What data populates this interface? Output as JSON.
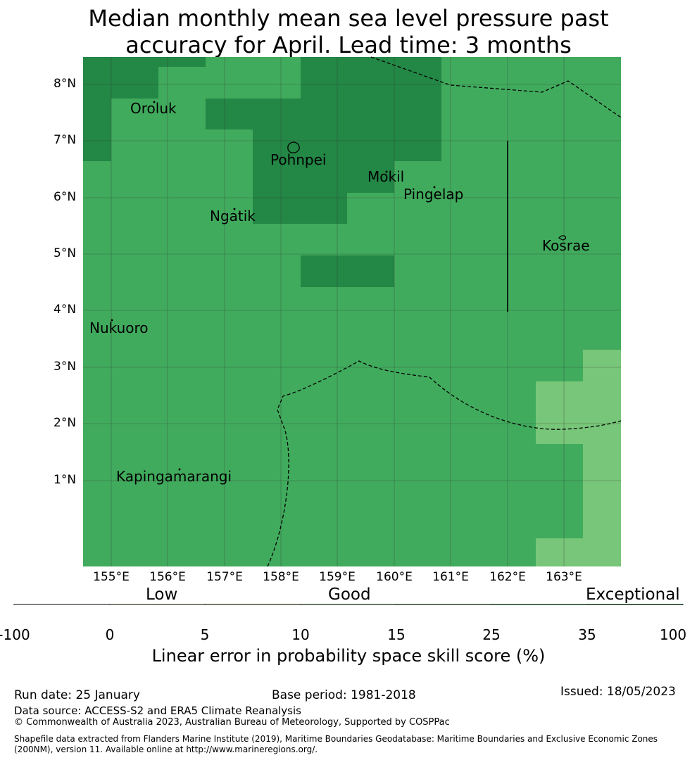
{
  "title": {
    "line1": "Median monthly mean sea level pressure past",
    "line2": "accuracy for April. Lead time: 3 months"
  },
  "map": {
    "lat_labels": [
      "8°N",
      "7°N",
      "6°N",
      "5°N",
      "4°N",
      "3°N",
      "2°N",
      "1°N"
    ],
    "lon_labels": [
      "155°E",
      "156°E",
      "157°E",
      "158°E",
      "159°E",
      "160°E",
      "161°E",
      "162°E",
      "163°E"
    ],
    "places": [
      {
        "name": "Oroluk"
      },
      {
        "name": "Pohnpei"
      },
      {
        "name": "Mokil"
      },
      {
        "name": "Pingelap"
      },
      {
        "name": "Ngatik"
      },
      {
        "name": "Kosrae"
      },
      {
        "name": "Nukuoro"
      },
      {
        "name": "Kapingamarangi"
      }
    ],
    "colors": {
      "exceptional": "#238745",
      "good_high": "#41ab5d",
      "good_mid": "#78c679",
      "grid": "#333333"
    }
  },
  "legend": {
    "categories": [
      "Low",
      "Good",
      "Exceptional"
    ],
    "bins": [
      {
        "from": -100,
        "to": 0,
        "color": "#ffffff"
      },
      {
        "from": 0,
        "to": 5,
        "color": "#ffffcc"
      },
      {
        "from": 5,
        "to": 10,
        "color": "#d9f0a3"
      },
      {
        "from": 10,
        "to": 15,
        "color": "#addd8e"
      },
      {
        "from": 15,
        "to": 25,
        "color": "#78c679"
      },
      {
        "from": 25,
        "to": 35,
        "color": "#41ab5d"
      },
      {
        "from": 35,
        "to": 100,
        "color": "#238443"
      }
    ],
    "ticks": [
      "-100",
      "0",
      "5",
      "10",
      "15",
      "25",
      "35",
      "100"
    ],
    "label": "Linear error in probability space skill score (%)"
  },
  "footer": {
    "run_date": "Run date: 25 January",
    "base_period": "Base period: 1981-2018",
    "issued": "Issued: 18/05/2023",
    "data_source": "Data source: ACCESS-S2 and ERA5 Climate Reanalysis",
    "copyright": "© Commonwealth of Australia 2023, Australian Bureau of Meteorology, Supported by COSPPac",
    "shapefile_line1": "Shapefile data extracted from Flanders Marine Institute (2019), Maritime Boundaries Geodatabase: Maritime Boundaries and Exclusive Economic Zones",
    "shapefile_line2": "(200NM), version 11. Available online at http://www.marineregions.org/."
  }
}
